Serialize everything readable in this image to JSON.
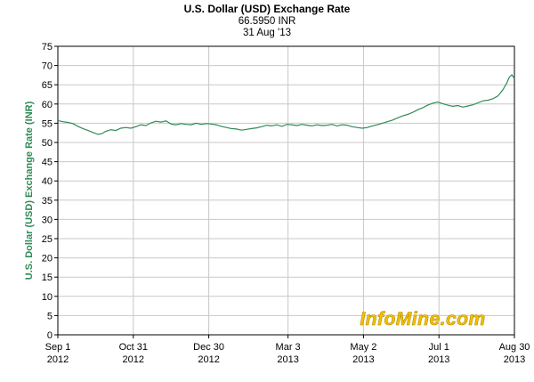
{
  "header": {
    "title": "U.S. Dollar (USD) Exchange Rate",
    "value": "66.5950 INR",
    "date": "31 Aug '13"
  },
  "watermark": "InfoMine.com",
  "chart_data": {
    "type": "line",
    "title": "U.S. Dollar (USD) Exchange Rate",
    "ylabel": "U.S. Dollar (USD) Exchange Rate (INR)",
    "xlabel": "",
    "ylim": [
      0,
      75
    ],
    "ytick_step": 5,
    "grid": true,
    "line_color": "#2e8b57",
    "xlim_day": [
      0,
      363
    ],
    "x_ticks": [
      {
        "line1": "Sep 1",
        "line2": "2012",
        "day": 0
      },
      {
        "line1": "Oct 31",
        "line2": "2012",
        "day": 60
      },
      {
        "line1": "Dec 30",
        "line2": "2012",
        "day": 120
      },
      {
        "line1": "Mar 3",
        "line2": "2013",
        "day": 183
      },
      {
        "line1": "May 2",
        "line2": "2013",
        "day": 243
      },
      {
        "line1": "Jul 1",
        "line2": "2013",
        "day": 303
      },
      {
        "line1": "Aug 30",
        "line2": "2013",
        "day": 363
      }
    ],
    "series": [
      {
        "values": [
          [
            0,
            55.7
          ],
          [
            4,
            55.4
          ],
          [
            8,
            55.2
          ],
          [
            12,
            54.9
          ],
          [
            16,
            54.2
          ],
          [
            20,
            53.6
          ],
          [
            24,
            53.1
          ],
          [
            28,
            52.6
          ],
          [
            32,
            52.1
          ],
          [
            35,
            52.3
          ],
          [
            38,
            52.9
          ],
          [
            42,
            53.3
          ],
          [
            46,
            53.1
          ],
          [
            50,
            53.7
          ],
          [
            54,
            53.9
          ],
          [
            58,
            53.7
          ],
          [
            62,
            54.1
          ],
          [
            66,
            54.6
          ],
          [
            70,
            54.4
          ],
          [
            74,
            55.1
          ],
          [
            78,
            55.5
          ],
          [
            82,
            55.3
          ],
          [
            86,
            55.6
          ],
          [
            90,
            54.8
          ],
          [
            94,
            54.6
          ],
          [
            98,
            54.9
          ],
          [
            102,
            54.7
          ],
          [
            106,
            54.6
          ],
          [
            110,
            55.0
          ],
          [
            114,
            54.7
          ],
          [
            118,
            54.9
          ],
          [
            122,
            54.8
          ],
          [
            126,
            54.6
          ],
          [
            130,
            54.2
          ],
          [
            134,
            53.9
          ],
          [
            138,
            53.6
          ],
          [
            142,
            53.5
          ],
          [
            146,
            53.2
          ],
          [
            150,
            53.4
          ],
          [
            154,
            53.6
          ],
          [
            158,
            53.8
          ],
          [
            162,
            54.1
          ],
          [
            166,
            54.5
          ],
          [
            170,
            54.3
          ],
          [
            174,
            54.6
          ],
          [
            178,
            54.2
          ],
          [
            182,
            54.7
          ],
          [
            186,
            54.6
          ],
          [
            190,
            54.4
          ],
          [
            194,
            54.7
          ],
          [
            198,
            54.5
          ],
          [
            202,
            54.3
          ],
          [
            206,
            54.6
          ],
          [
            210,
            54.4
          ],
          [
            214,
            54.5
          ],
          [
            218,
            54.7
          ],
          [
            222,
            54.3
          ],
          [
            226,
            54.6
          ],
          [
            230,
            54.5
          ],
          [
            234,
            54.1
          ],
          [
            238,
            53.9
          ],
          [
            242,
            53.7
          ],
          [
            246,
            53.9
          ],
          [
            250,
            54.3
          ],
          [
            254,
            54.6
          ],
          [
            258,
            55.0
          ],
          [
            262,
            55.4
          ],
          [
            266,
            55.8
          ],
          [
            270,
            56.4
          ],
          [
            274,
            56.9
          ],
          [
            278,
            57.3
          ],
          [
            282,
            57.8
          ],
          [
            286,
            58.5
          ],
          [
            290,
            59.0
          ],
          [
            294,
            59.7
          ],
          [
            298,
            60.2
          ],
          [
            302,
            60.5
          ],
          [
            306,
            60.1
          ],
          [
            310,
            59.7
          ],
          [
            314,
            59.4
          ],
          [
            318,
            59.6
          ],
          [
            322,
            59.2
          ],
          [
            326,
            59.5
          ],
          [
            330,
            59.8
          ],
          [
            334,
            60.3
          ],
          [
            338,
            60.8
          ],
          [
            342,
            61.0
          ],
          [
            346,
            61.4
          ],
          [
            350,
            62.1
          ],
          [
            354,
            63.8
          ],
          [
            357,
            65.5
          ],
          [
            359,
            67.0
          ],
          [
            361,
            67.6
          ],
          [
            363,
            66.6
          ]
        ]
      }
    ]
  }
}
